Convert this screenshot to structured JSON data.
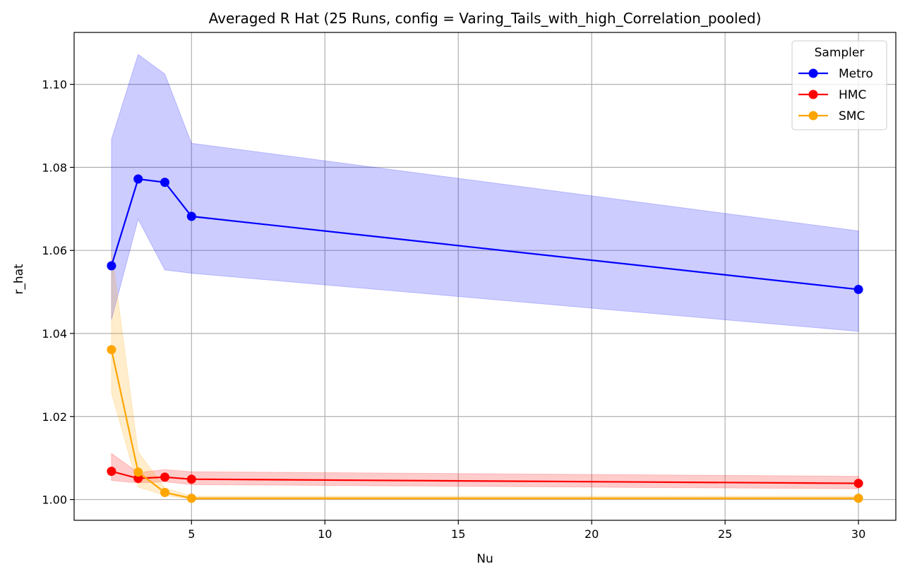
{
  "chart_data": {
    "type": "line",
    "title": "Averaged R Hat (25 Runs, config = Varing_Tails_with_high_Correlation_pooled)",
    "xlabel": "Nu",
    "ylabel": "r_hat",
    "xlim": [
      0.6,
      31.4
    ],
    "ylim": [
      0.995,
      1.1125
    ],
    "xticks": [
      5,
      10,
      15,
      20,
      25,
      30
    ],
    "yticks": [
      1.0,
      1.02,
      1.04,
      1.06,
      1.08,
      1.1
    ],
    "ytick_labels": [
      "1.00",
      "1.02",
      "1.04",
      "1.06",
      "1.08",
      "1.10"
    ],
    "grid": true,
    "legend": {
      "title": "Sampler",
      "position": "top-right"
    },
    "x": [
      2,
      3,
      4,
      5,
      30
    ],
    "series": [
      {
        "name": "Metro",
        "color": "#0000ff",
        "band_color": "#0000ff",
        "values": [
          1.0563,
          1.0772,
          1.0764,
          1.0682,
          1.0506
        ],
        "lower": [
          1.0433,
          1.0675,
          1.0553,
          1.0545,
          1.0405
        ],
        "upper": [
          1.0868,
          1.1072,
          1.1025,
          1.0858,
          1.0647
        ]
      },
      {
        "name": "HMC",
        "color": "#ff0000",
        "band_color": "#ff0000",
        "values": [
          1.0068,
          1.0051,
          1.0054,
          1.0049,
          1.0039
        ],
        "lower": [
          1.0046,
          1.004,
          1.0043,
          1.0036,
          1.0026
        ],
        "upper": [
          1.0111,
          1.0065,
          1.0072,
          1.0067,
          1.0056
        ]
      },
      {
        "name": "SMC",
        "color": "#ffa500",
        "band_color": "#ffa500",
        "values": [
          1.0361,
          1.0066,
          1.0017,
          1.0003,
          1.0003
        ],
        "lower": [
          1.0257,
          1.003,
          1.001,
          1.0,
          1.0
        ],
        "upper": [
          1.06,
          1.0115,
          1.0028,
          1.0008,
          1.0008
        ]
      }
    ]
  }
}
